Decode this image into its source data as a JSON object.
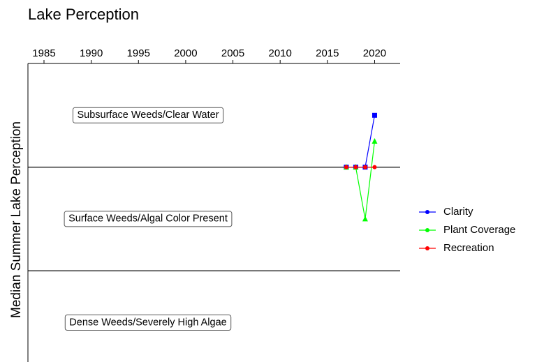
{
  "chart_data": {
    "type": "line",
    "title": "Lake Perception",
    "ylabel": "Median Summer Lake Perception",
    "x": [
      2017,
      2018,
      2019,
      2020
    ],
    "series": [
      {
        "name": "Clarity",
        "color": "#0000ff",
        "marker": "square",
        "values": [
          2,
          2,
          2,
          2.5
        ]
      },
      {
        "name": "Plant Coverage",
        "color": "#00ff00",
        "marker": "triangle",
        "values": [
          2,
          2,
          1.5,
          2.25
        ]
      },
      {
        "name": "Recreation",
        "color": "#ff0000",
        "marker": "circle",
        "values": [
          2,
          2,
          2,
          2
        ]
      }
    ],
    "xlim": [
      1983.3,
      2022.7
    ],
    "xticks": [
      1985,
      1990,
      1995,
      2000,
      2005,
      2010,
      2015,
      2020
    ],
    "ylim": [
      0.12,
      3
    ],
    "hlines": [
      1,
      2
    ],
    "annotations": [
      {
        "text": "Subsurface Weeds/Clear Water",
        "y": 2.5
      },
      {
        "text": "Surface Weeds/Algal Color Present",
        "y": 1.5
      },
      {
        "text": "Dense Weeds/Severely High Algae",
        "y": 0.5
      }
    ],
    "legend": "right"
  }
}
